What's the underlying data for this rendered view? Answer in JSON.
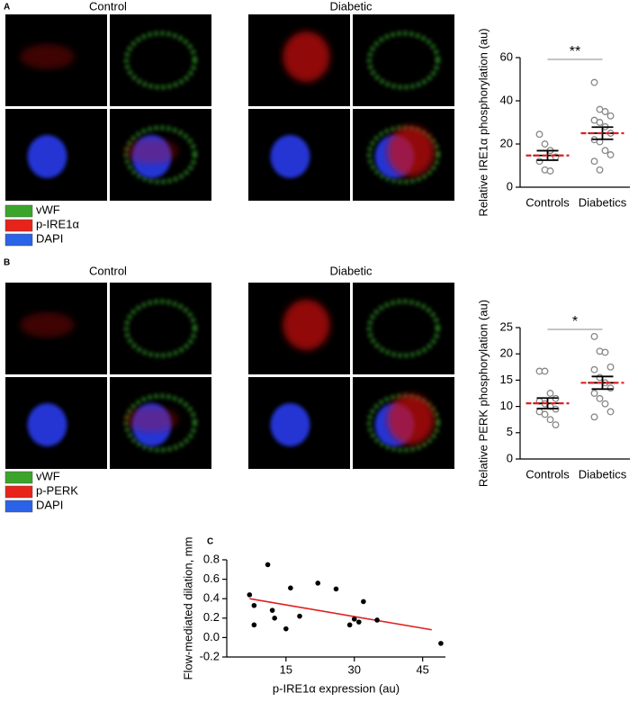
{
  "panels": [
    {
      "label": "A",
      "conditions": [
        "Control",
        "Diabetic"
      ],
      "legend": [
        {
          "name": "vWF",
          "color": "#3aa52a"
        },
        {
          "name": "p-IRE1α",
          "color": "#e8231a"
        },
        {
          "name": "DAPI",
          "color": "#2a62e8"
        }
      ]
    },
    {
      "label": "B",
      "conditions": [
        "Control",
        "Diabetic"
      ],
      "legend": [
        {
          "name": "vWF",
          "color": "#3aa52a"
        },
        {
          "name": "p-PERK",
          "color": "#e8231a"
        },
        {
          "name": "DAPI",
          "color": "#2a62e8"
        }
      ]
    },
    {
      "label": "C"
    }
  ],
  "chart_data": [
    {
      "type": "dotplot",
      "ylabel": "Relative IRE1α phosphorylation (au)",
      "categories": [
        "Controls",
        "Diabetics"
      ],
      "points": [
        [
          24.5,
          20,
          17,
          14,
          12,
          8,
          7.5
        ],
        [
          48.5,
          36,
          35,
          33,
          31,
          30,
          28,
          25,
          22,
          21,
          17,
          15,
          12,
          8
        ]
      ],
      "means": [
        14.7,
        25.0
      ],
      "errors": [
        2.2,
        2.8
      ],
      "annotation": "**",
      "point_color": "#888888",
      "mean_color": "#e02020",
      "ylim": [
        0,
        60
      ],
      "yticks": [
        0,
        20,
        40,
        60
      ]
    },
    {
      "type": "dotplot",
      "ylabel": "Relative PERK phosphorylation (au)",
      "categories": [
        "Controls",
        "Diabetics"
      ],
      "points": [
        [
          16.7,
          16.7,
          12.5,
          11.5,
          11,
          10.5,
          10,
          9.5,
          9,
          8.5,
          7.5,
          6.5
        ],
        [
          23.3,
          20.5,
          20.3,
          17.5,
          17,
          15.5,
          14.5,
          13.5,
          12.5,
          11.5,
          10.5,
          9,
          8
        ]
      ],
      "means": [
        10.6,
        14.5
      ],
      "errors": [
        1.0,
        1.2
      ],
      "annotation": "*",
      "point_color": "#888888",
      "mean_color": "#e02020",
      "ylim": [
        0,
        25
      ],
      "yticks": [
        0,
        5,
        10,
        15,
        20,
        25
      ]
    },
    {
      "type": "scatter",
      "xlabel": "p-IRE1α expression (au)",
      "ylabel": "Flow-mediated dilation, mm",
      "x": [
        7,
        8,
        8,
        11,
        12,
        12.5,
        15,
        16,
        18,
        22,
        26,
        29,
        30,
        31,
        32,
        35,
        49
      ],
      "y": [
        0.44,
        0.33,
        0.13,
        0.75,
        0.28,
        0.2,
        0.09,
        0.51,
        0.22,
        0.56,
        0.5,
        0.13,
        0.19,
        0.16,
        0.37,
        0.18,
        -0.06
      ],
      "color": "#000000",
      "trendline": {
        "x": [
          7,
          47
        ],
        "y": [
          0.4,
          0.08
        ],
        "color": "#e02020"
      },
      "xlim": [
        2,
        50
      ],
      "xticks": [
        15,
        30,
        45
      ],
      "ylim": [
        -0.2,
        0.8
      ],
      "yticks": [
        -0.2,
        {
          "value": 0,
          "label": "0.0"
        },
        0.2,
        0.4,
        0.6,
        0.8
      ]
    }
  ]
}
